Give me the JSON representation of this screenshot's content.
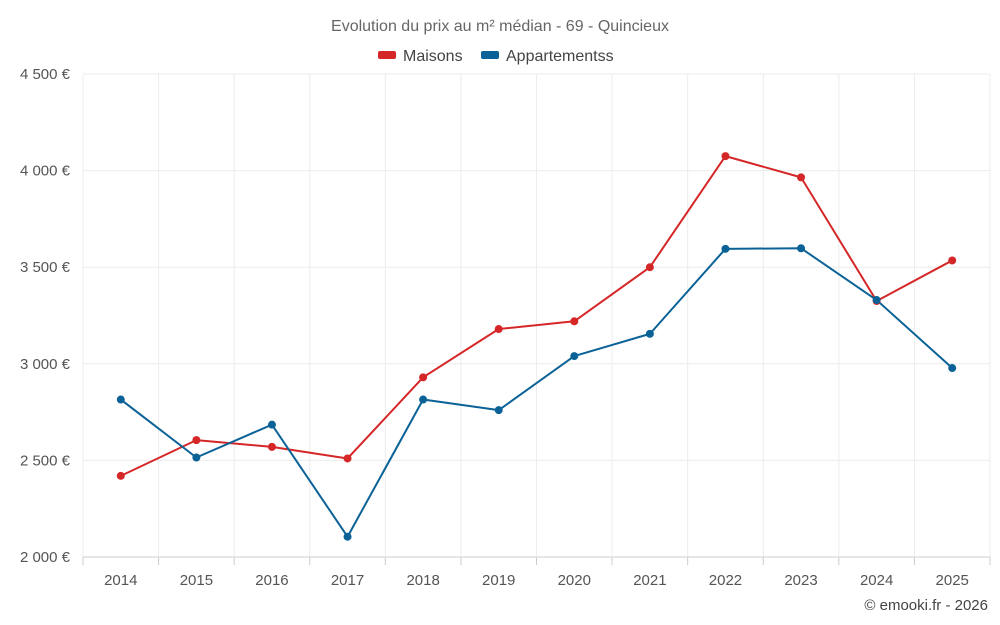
{
  "chart_data": {
    "type": "line",
    "title": "Evolution du prix au m² médian - 69 - Quincieux",
    "categories": [
      "2014",
      "2015",
      "2016",
      "2017",
      "2018",
      "2019",
      "2020",
      "2021",
      "2022",
      "2023",
      "2024",
      "2025"
    ],
    "series": [
      {
        "name": "Maisons",
        "color": "#d62728",
        "values": [
          2420,
          2605,
          2570,
          2510,
          2930,
          3180,
          3220,
          3500,
          4075,
          3965,
          3325,
          3535
        ]
      },
      {
        "name": "Appartementss",
        "color": "#0b6297",
        "values": [
          2815,
          2515,
          2685,
          2105,
          2815,
          2760,
          3040,
          3155,
          3595,
          3598,
          3330,
          2978
        ]
      }
    ],
    "ylim": [
      2000,
      4500
    ],
    "yticks": [
      2000,
      2500,
      3000,
      3500,
      4000,
      4500
    ],
    "ytick_labels": [
      "2 000 €",
      "2 500 €",
      "3 000 €",
      "3 500 €",
      "4 000 €",
      "4 500 €"
    ],
    "legend_position": "top-center",
    "grid": true,
    "credit": "© emooki.fr - 2026"
  }
}
